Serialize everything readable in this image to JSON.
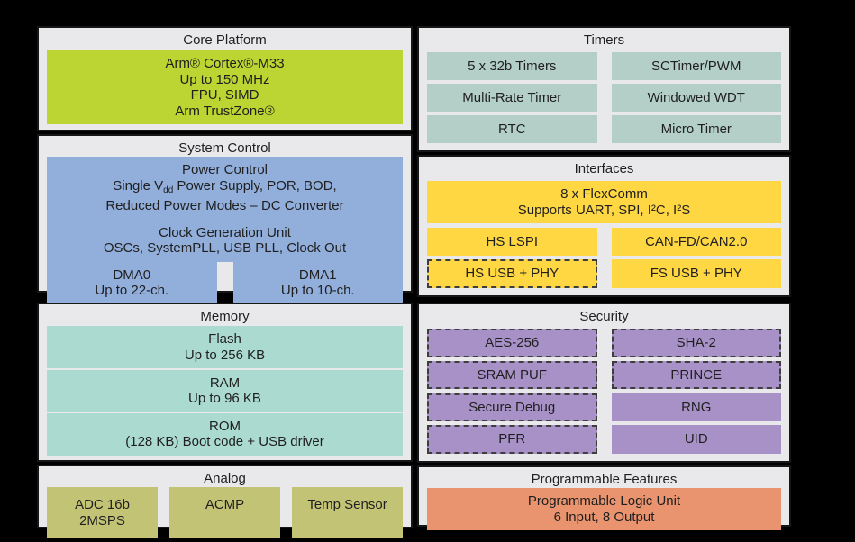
{
  "palette": {
    "bg": "#000000",
    "panel": "#E9E9EB",
    "border": "#161616",
    "text": "#1F1F1F",
    "dash": "#3D3D3D",
    "green": "#BCD532",
    "blue": "#92AFDC",
    "teal_mem": "#ABDBD0",
    "teal_tim": "#B3CFC8",
    "yellow": "#FFD743",
    "purple": "#A891C7",
    "olive": "#C3C375",
    "orange": "#E9946E"
  },
  "panels": {
    "core_platform": {
      "title": "Core Platform",
      "block": {
        "lines": [
          "Arm® Cortex®-M33",
          "Up to 150 MHz",
          "FPU, SIMD",
          "Arm TrustZone®"
        ]
      }
    },
    "system_control": {
      "title": "System Control",
      "power_control": {
        "line1": "Power Control",
        "line2_pre": "Single V",
        "line2_sub": "dd",
        "line2_post": " Power Supply, POR, BOD,",
        "line3": "Reduced Power Modes – DC Converter"
      },
      "clock_gen": {
        "lines": [
          "Clock Generation Unit",
          "OSCs, SystemPLL, USB PLL, Clock Out"
        ]
      },
      "dma0": {
        "lines": [
          "DMA0",
          "Up to 22-ch."
        ]
      },
      "dma1": {
        "lines": [
          "DMA1",
          "Up to 10-ch."
        ]
      }
    },
    "memory": {
      "title": "Memory",
      "flash": {
        "lines": [
          "Flash",
          "Up to 256 KB"
        ]
      },
      "ram": {
        "lines": [
          "RAM",
          "Up to 96 KB"
        ]
      },
      "rom": {
        "lines": [
          "ROM",
          "(128 KB) Boot code + USB driver"
        ]
      }
    },
    "analog": {
      "title": "Analog",
      "adc": "ADC 16b 2MSPS",
      "acmp": "ACMP",
      "temp_sensor": "Temp Sensor"
    },
    "timers": {
      "title": "Timers",
      "items": [
        "5 x 32b Timers",
        "SCTimer/PWM",
        "Multi-Rate Timer",
        "Windowed WDT",
        "RTC",
        "Micro Timer"
      ]
    },
    "interfaces": {
      "title": "Interfaces",
      "flexcomm": {
        "lines": [
          "8 x FlexComm",
          "Supports UART, SPI, I²C, I²S"
        ]
      },
      "hs_lspi": "HS LSPI",
      "can": "CAN-FD/CAN2.0",
      "hs_usb": "HS USB + PHY",
      "fs_usb": "FS USB + PHY"
    },
    "security": {
      "title": "Security",
      "items": [
        "AES-256",
        "SHA-2",
        "SRAM PUF",
        "PRINCE",
        "Secure Debug",
        "RNG",
        "PFR",
        "UID"
      ]
    },
    "programmable": {
      "title": "Programmable Features",
      "plu": {
        "lines": [
          "Programmable Logic Unit",
          "6 Input, 8 Output"
        ]
      }
    }
  }
}
